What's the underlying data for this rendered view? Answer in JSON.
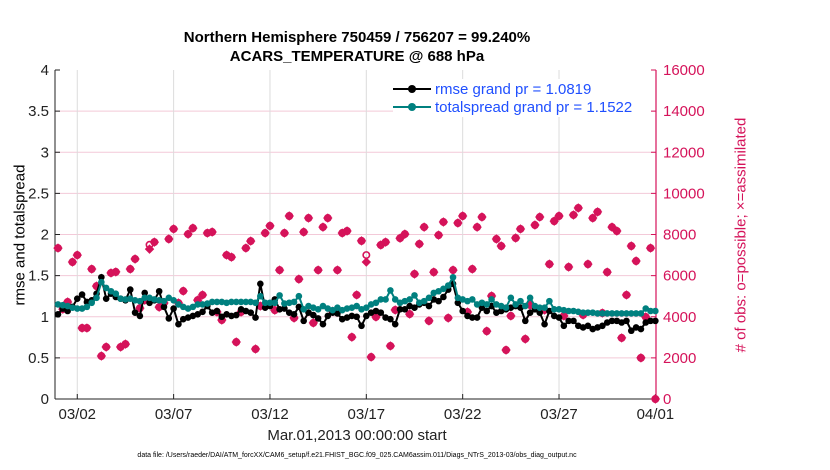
{
  "chart_data": {
    "type": "line",
    "title": [
      "Northern Hemisphere 750459 / 756207 = 99.240%",
      "ACARS_TEMPERATURE @ 688 hPa"
    ],
    "xlabel": "Mar.01,2013 00:00:00 start",
    "ylabel_left": "rmse and totalspread",
    "ylabel_right": "# of obs: o=possible; ×=assimilated",
    "footer": "data file: /Users/raeder/DAI/ATM_forcXX/CAM6_setup/f.e21.FHIST_BGC.f09_025.CAM6assim.011/Diags_NTrS_2013-03/obs_diag_output.nc",
    "ylim_left": [
      0,
      4
    ],
    "ylim_right": [
      0,
      16000
    ],
    "xlim": [
      "03/01 00",
      "04/01 00"
    ],
    "yticks_left": [
      "0",
      "0.5",
      "1",
      "1.5",
      "2",
      "2.5",
      "3",
      "3.5",
      "4"
    ],
    "yticks_right": [
      "0",
      "2000",
      "4000",
      "6000",
      "8000",
      "10000",
      "12000",
      "14000",
      "16000"
    ],
    "xticks": [
      "03/02",
      "03/07",
      "03/12",
      "03/17",
      "03/22",
      "03/27",
      "04/01"
    ],
    "grid": true,
    "legend_position": "top-right",
    "colors": {
      "rmse": "#000000",
      "totalspread": "#00807f",
      "obs": "#d5135a",
      "legend_text": "#1f4fff"
    },
    "x": [
      "03/01 00",
      "03/01 06",
      "03/01 12",
      "03/01 18",
      "03/02 00",
      "03/02 06",
      "03/02 12",
      "03/02 18",
      "03/03 00",
      "03/03 06",
      "03/03 12",
      "03/03 18",
      "03/04 00",
      "03/04 06",
      "03/04 12",
      "03/04 18",
      "03/05 00",
      "03/05 06",
      "03/05 12",
      "03/05 18",
      "03/06 00",
      "03/06 06",
      "03/06 12",
      "03/06 18",
      "03/07 00",
      "03/07 06",
      "03/07 12",
      "03/07 18",
      "03/08 00",
      "03/08 06",
      "03/08 12",
      "03/08 18",
      "03/09 00",
      "03/09 06",
      "03/09 12",
      "03/09 18",
      "03/10 00",
      "03/10 06",
      "03/10 12",
      "03/10 18",
      "03/11 00",
      "03/11 06",
      "03/11 12",
      "03/11 18",
      "03/12 00",
      "03/12 06",
      "03/12 12",
      "03/12 18",
      "03/13 00",
      "03/13 06",
      "03/13 12",
      "03/13 18",
      "03/14 00",
      "03/14 06",
      "03/14 12",
      "03/14 18",
      "03/15 00",
      "03/15 06",
      "03/15 12",
      "03/15 18",
      "03/16 00",
      "03/16 06",
      "03/16 12",
      "03/16 18",
      "03/17 00",
      "03/17 06",
      "03/17 12",
      "03/17 18",
      "03/18 00",
      "03/18 06",
      "03/18 12",
      "03/18 18",
      "03/19 00",
      "03/19 06",
      "03/19 12",
      "03/19 18",
      "03/20 00",
      "03/20 06",
      "03/20 12",
      "03/20 18",
      "03/21 00",
      "03/21 06",
      "03/21 12",
      "03/21 18",
      "03/22 00",
      "03/22 06",
      "03/22 12",
      "03/22 18",
      "03/23 00",
      "03/23 06",
      "03/23 12",
      "03/23 18",
      "03/24 00",
      "03/24 06",
      "03/24 12",
      "03/24 18",
      "03/25 00",
      "03/25 06",
      "03/25 12",
      "03/25 18",
      "03/26 00",
      "03/26 06",
      "03/26 12",
      "03/26 18",
      "03/27 00",
      "03/27 06",
      "03/27 12",
      "03/27 18",
      "03/28 00",
      "03/28 06",
      "03/28 12",
      "03/28 18",
      "03/29 00",
      "03/29 06",
      "03/29 12",
      "03/29 18",
      "03/30 00",
      "03/30 06",
      "03/30 12",
      "03/30 18",
      "03/31 00",
      "03/31 06",
      "03/31 12",
      "03/31 18",
      "04/01 00"
    ],
    "series": [
      {
        "name": "rmse grand pr = 1.0819",
        "axis": "left",
        "values": [
          1.03,
          1.1,
          1.07,
          1.12,
          1.22,
          1.27,
          1.18,
          1.2,
          1.28,
          1.48,
          1.22,
          1.28,
          1.24,
          1.22,
          1.2,
          1.33,
          1.05,
          1.01,
          1.29,
          1.17,
          1.2,
          1.31,
          1.12,
          0.98,
          1.1,
          0.91,
          0.97,
          0.99,
          1.01,
          1.03,
          1.06,
          1.13,
          1.05,
          1.07,
          1.0,
          1.03,
          1.01,
          1.02,
          1.09,
          1.07,
          1.05,
          0.99,
          1.4,
          1.11,
          1.13,
          1.21,
          1.09,
          1.1,
          1.05,
          1.03,
          1.12,
          0.95,
          1.05,
          1.02,
          0.98,
          0.91,
          1.01,
          1.05,
          1.04,
          0.97,
          0.99,
          1.01,
          1.0,
          0.89,
          1.01,
          1.05,
          1.07,
          1.05,
          0.99,
          0.97,
          0.91,
          1.09,
          1.09,
          1.13,
          1.11,
          1.15,
          1.17,
          1.13,
          1.21,
          1.19,
          1.24,
          1.33,
          1.4,
          1.17,
          1.07,
          1.01,
          0.99,
          0.99,
          1.11,
          1.07,
          1.13,
          1.05,
          1.07,
          1.09,
          1.11,
          1.13,
          1.11,
          0.95,
          1.05,
          1.09,
          1.05,
          0.91,
          1.07,
          1.01,
          0.99,
          0.89,
          0.95,
          0.95,
          0.89,
          0.87,
          0.89,
          0.85,
          0.87,
          0.89,
          0.93,
          0.95,
          0.95,
          0.93,
          0.95,
          0.83,
          0.87,
          0.85,
          0.93,
          0.95,
          0.95
        ]
      },
      {
        "name": "totalspread grand pr = 1.1522",
        "axis": "left",
        "values": [
          1.15,
          1.14,
          1.13,
          1.11,
          1.1,
          1.1,
          1.12,
          1.17,
          1.23,
          1.42,
          1.35,
          1.31,
          1.28,
          1.22,
          1.21,
          1.22,
          1.2,
          1.19,
          1.23,
          1.23,
          1.21,
          1.2,
          1.19,
          1.23,
          1.2,
          1.15,
          1.12,
          1.1,
          1.12,
          1.15,
          1.15,
          1.16,
          1.18,
          1.18,
          1.18,
          1.17,
          1.18,
          1.18,
          1.18,
          1.18,
          1.18,
          1.17,
          1.25,
          1.17,
          1.17,
          1.17,
          1.26,
          1.16,
          1.17,
          1.18,
          1.25,
          1.09,
          1.13,
          1.11,
          1.09,
          1.13,
          1.1,
          1.08,
          1.11,
          1.08,
          1.1,
          1.11,
          1.13,
          1.09,
          1.11,
          1.15,
          1.17,
          1.21,
          1.21,
          1.32,
          1.21,
          1.17,
          1.19,
          1.21,
          1.26,
          1.17,
          1.19,
          1.23,
          1.29,
          1.31,
          1.34,
          1.38,
          1.48,
          1.23,
          1.21,
          1.19,
          1.21,
          1.15,
          1.17,
          1.15,
          1.21,
          1.15,
          1.13,
          1.11,
          1.23,
          1.15,
          1.19,
          1.13,
          1.23,
          1.13,
          1.11,
          1.11,
          1.19,
          1.09,
          1.09,
          1.08,
          1.07,
          1.07,
          1.06,
          1.05,
          1.05,
          1.05,
          1.04,
          1.04,
          1.04,
          1.04,
          1.04,
          1.04,
          1.04,
          1.04,
          1.04,
          1.04,
          1.1,
          1.07,
          1.07
        ]
      },
      {
        "name": "possible",
        "axis": "right",
        "values": [
          7340,
          4370,
          4720,
          6660,
          7000,
          3450,
          3450,
          6320,
          5490,
          2090,
          2530,
          6130,
          6180,
          2530,
          2670,
          6320,
          6810,
          4420,
          4810,
          7500,
          7630,
          4470,
          4670,
          7780,
          8270,
          4670,
          5250,
          8020,
          8310,
          4810,
          5060,
          8070,
          8120,
          4230,
          3840,
          7000,
          6900,
          2770,
          4230,
          7340,
          7680,
          2430,
          4520,
          8070,
          8420,
          4320,
          6270,
          8070,
          8900,
          3940,
          5830,
          8120,
          8800,
          3700,
          6270,
          8360,
          8800,
          4270,
          6270,
          8070,
          8170,
          3010,
          5060,
          7690,
          7000,
          2040,
          3990,
          7490,
          7630,
          2580,
          4330,
          7820,
          8020,
          4130,
          6080,
          7540,
          8360,
          3800,
          6170,
          7970,
          8610,
          3940,
          6270,
          8560,
          8900,
          4230,
          6320,
          8360,
          8850,
          3300,
          5010,
          7780,
          7440,
          2380,
          4040,
          7830,
          8270,
          2920,
          4570,
          8460,
          8850,
          4330,
          6560,
          8650,
          8900,
          4040,
          6420,
          8950,
          9290,
          4090,
          6560,
          8800,
          9100,
          4180,
          6170,
          8360,
          8170,
          2970,
          5060,
          7440,
          6710,
          2000,
          3990,
          7340,
          0
        ]
      },
      {
        "name": "assimilated",
        "axis": "right",
        "values": [
          7340,
          4370,
          4720,
          6660,
          7000,
          3450,
          3450,
          6320,
          5490,
          2090,
          2530,
          6130,
          6180,
          2530,
          2670,
          6320,
          6810,
          4420,
          4810,
          7290,
          7630,
          4470,
          4670,
          7780,
          8270,
          4670,
          5250,
          8020,
          8310,
          4810,
          5060,
          8070,
          8120,
          4230,
          3840,
          7000,
          6900,
          2770,
          4230,
          7340,
          7680,
          2430,
          4520,
          8070,
          8420,
          4320,
          6270,
          8070,
          8900,
          3940,
          5830,
          8120,
          8800,
          3700,
          6270,
          8360,
          8800,
          4270,
          6270,
          8070,
          8170,
          3010,
          5060,
          7690,
          6660,
          2040,
          3990,
          7490,
          7630,
          2580,
          4330,
          7820,
          8020,
          4130,
          6080,
          7540,
          8360,
          3800,
          6170,
          7970,
          8610,
          3940,
          6270,
          8560,
          8900,
          4230,
          6320,
          8360,
          8850,
          3300,
          5010,
          7780,
          7440,
          2380,
          4040,
          7830,
          8270,
          2920,
          4570,
          8460,
          8850,
          4330,
          6560,
          8650,
          8900,
          4040,
          6420,
          8950,
          9290,
          4090,
          6560,
          8800,
          9100,
          4180,
          6170,
          8360,
          8170,
          2970,
          5060,
          7440,
          6710,
          2000,
          3990,
          7340,
          0
        ]
      }
    ]
  }
}
